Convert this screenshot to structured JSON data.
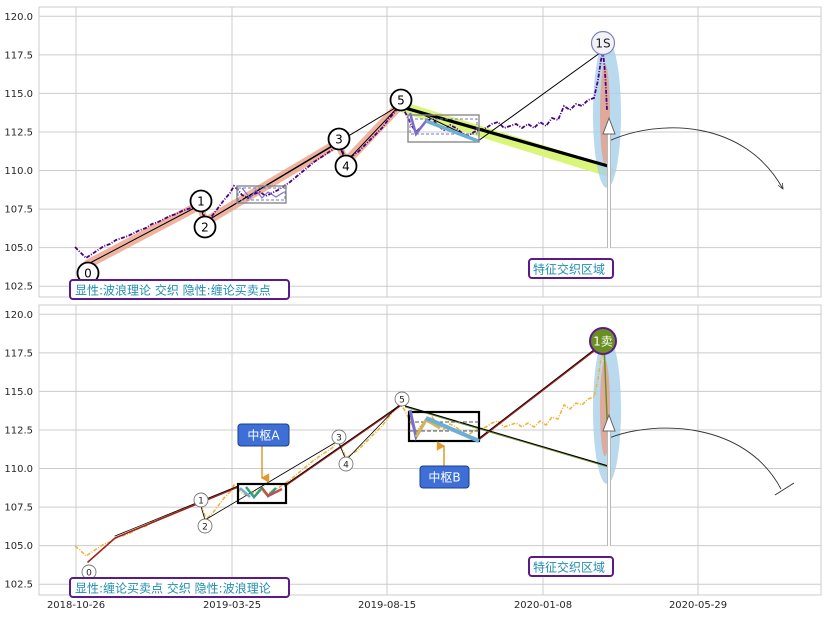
{
  "chart_data": [
    {
      "type": "line",
      "panel": "top",
      "title": "",
      "xlabel": "",
      "ylabel": "",
      "x_ticks": [
        "2018-10-26",
        "2019-03-25",
        "2019-08-15",
        "2020-01-08",
        "2020-05-29"
      ],
      "y_ticks": [
        "102.5",
        "105.0",
        "107.5",
        "110.0",
        "112.5",
        "115.0",
        "117.5",
        "120.0"
      ],
      "ylim": [
        101.8,
        120.6
      ],
      "grid": true,
      "wave_labels": [
        "0",
        "1",
        "2",
        "3",
        "4",
        "5"
      ],
      "peak_label": "1S",
      "wave_points": [
        {
          "label": "0",
          "x": "2018-11-10",
          "y": 103.9
        },
        {
          "label": "1",
          "x": "2019-03-10",
          "y": 107.6
        },
        {
          "label": "2",
          "x": "2019-03-18",
          "y": 106.8
        },
        {
          "label": "3",
          "x": "2019-07-28",
          "y": 111.7
        },
        {
          "label": "4",
          "x": "2019-08-05",
          "y": 110.6
        },
        {
          "label": "5",
          "x": "2019-09-20",
          "y": 114.2
        },
        {
          "label": "1S",
          "x": "2020-03-08",
          "y": 117.9
        }
      ],
      "annotations": [
        "显性:波浪理论 交织 隐性:缠论买卖点",
        "特征交织区域"
      ]
    },
    {
      "type": "line",
      "panel": "bottom",
      "title": "",
      "xlabel": "",
      "ylabel": "",
      "x_ticks": [
        "2018-10-26",
        "2019-03-25",
        "2019-08-15",
        "2020-01-08",
        "2020-05-29"
      ],
      "y_ticks": [
        "102.5",
        "105.0",
        "107.5",
        "110.0",
        "112.5",
        "115.0",
        "117.5",
        "120.0"
      ],
      "ylim": [
        101.8,
        120.6
      ],
      "grid": true,
      "wave_labels": [
        "0",
        "1",
        "2",
        "3",
        "4",
        "5"
      ],
      "peak_label": "1卖",
      "pivot_labels": [
        "中枢A",
        "中枢B"
      ],
      "annotations": [
        "显性:缠论买卖点 交织 隐性:波浪理论",
        "特征交织区域"
      ]
    }
  ],
  "colors": {
    "grid": "#cccccc",
    "price_top": "#4b0082",
    "price_bottom": "#f0b43c",
    "salmon_band": "#e99a80",
    "blue_ellipse": "#a8cfea",
    "green_peak": "#6b8e23",
    "tag_blue": "#3d6fd6",
    "purple_frame": "#5a1a8a",
    "teal_text": "#1f8fb0",
    "yellow_green": "#d9f57a"
  }
}
